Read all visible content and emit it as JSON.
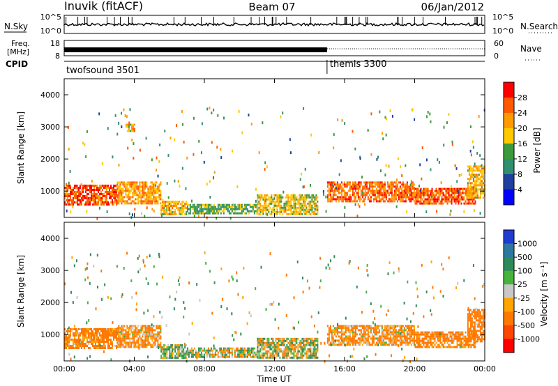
{
  "header": {
    "station": "Inuvik (fitACF)",
    "beam": "Beam 07",
    "date": "06/Jan/2012"
  },
  "nsky_panel": {
    "left_label": "N.Sky",
    "right_label": "N.Search",
    "left_ticks": [
      "10^5",
      "10^0"
    ],
    "right_ticks": [
      "10^5",
      "10^0"
    ]
  },
  "freq_panel": {
    "left_label_1": "Freq.",
    "left_label_2": "[MHz]",
    "right_label": "Nave",
    "left_ticks": [
      "18",
      "8"
    ],
    "right_ticks": [
      "60",
      "0"
    ]
  },
  "cpid": {
    "label": "CPID",
    "modes": [
      {
        "name": "twofsound 3501",
        "start_hour": 0
      },
      {
        "name": "themis 3300",
        "start_hour": 15
      }
    ]
  },
  "colorbars": {
    "power": {
      "label": "Power [dB]",
      "ticks": [
        "28",
        "24",
        "20",
        "16",
        "12",
        "8",
        "4"
      ],
      "colors": [
        "#ff0000",
        "#ff5a00",
        "#ff9a00",
        "#ffc800",
        "#3c9a3c",
        "#2f8f6f",
        "#2040a0",
        "#0000ff"
      ]
    },
    "velocity": {
      "label": "Velocity [m s⁻¹]",
      "ticks": [
        "1000",
        "500",
        "100",
        "25",
        "-25",
        "-100",
        "-500",
        "-1000"
      ],
      "colors": [
        "#1e3cd2",
        "#2d78a0",
        "#2e8b57",
        "#46b43c",
        "#c8c8c8",
        "#ffa500",
        "#ff7800",
        "#ff4600",
        "#ff0000"
      ]
    }
  },
  "chart_data": [
    {
      "type": "heatmap",
      "name": "power",
      "ylabel": "Slant Range [km]",
      "yticks": [
        "4000",
        "3000",
        "2000",
        "1000"
      ],
      "ylim": [
        180,
        4500
      ],
      "xlim_hours": [
        0,
        24
      ],
      "xticks": [
        "00:00",
        "04:00",
        "08:00",
        "12:00",
        "16:00",
        "20:00",
        "00:00"
      ],
      "regions": [
        {
          "t": [
            0,
            3
          ],
          "r": [
            600,
            1200
          ],
          "v": 27
        },
        {
          "t": [
            3,
            5.5
          ],
          "r": [
            600,
            1300
          ],
          "v": 22
        },
        {
          "t": [
            3.5,
            4
          ],
          "r": [
            2900,
            3100
          ],
          "v": 20
        },
        {
          "t": [
            5.5,
            7
          ],
          "r": [
            300,
            700
          ],
          "v": 20
        },
        {
          "t": [
            7,
            11
          ],
          "r": [
            300,
            600
          ],
          "v": 13
        },
        {
          "t": [
            11,
            14.5
          ],
          "r": [
            300,
            900
          ],
          "v": 18
        },
        {
          "t": [
            15,
            20
          ],
          "r": [
            700,
            1300
          ],
          "v": 25
        },
        {
          "t": [
            20,
            23.5
          ],
          "r": [
            600,
            1100
          ],
          "v": 26
        },
        {
          "t": [
            23,
            24
          ],
          "r": [
            800,
            1800
          ],
          "v": 20
        }
      ]
    },
    {
      "type": "heatmap",
      "name": "velocity",
      "ylabel": "Slant Range [km]",
      "yticks": [
        "4000",
        "3000",
        "2000",
        "1000"
      ],
      "ylim": [
        180,
        4500
      ],
      "xlim_hours": [
        0,
        24
      ],
      "xticks": [
        "00:00",
        "04:00",
        "08:00",
        "12:00",
        "16:00",
        "20:00",
        "00:00"
      ],
      "xlabel": "Time UT",
      "regions": [
        {
          "t": [
            0,
            3
          ],
          "r": [
            600,
            1200
          ],
          "v": -200
        },
        {
          "t": [
            3,
            5.5
          ],
          "r": [
            600,
            1300
          ],
          "v": -150
        },
        {
          "t": [
            5.5,
            7
          ],
          "r": [
            300,
            700
          ],
          "v": 50
        },
        {
          "t": [
            7,
            11
          ],
          "r": [
            300,
            600
          ],
          "v": 0
        },
        {
          "t": [
            11,
            14.5
          ],
          "r": [
            300,
            900
          ],
          "v": 0
        },
        {
          "t": [
            15,
            20
          ],
          "r": [
            700,
            1300
          ],
          "v": -150
        },
        {
          "t": [
            20,
            23.5
          ],
          "r": [
            600,
            1100
          ],
          "v": -200
        },
        {
          "t": [
            23,
            24
          ],
          "r": [
            800,
            1800
          ],
          "v": -300
        }
      ]
    }
  ]
}
